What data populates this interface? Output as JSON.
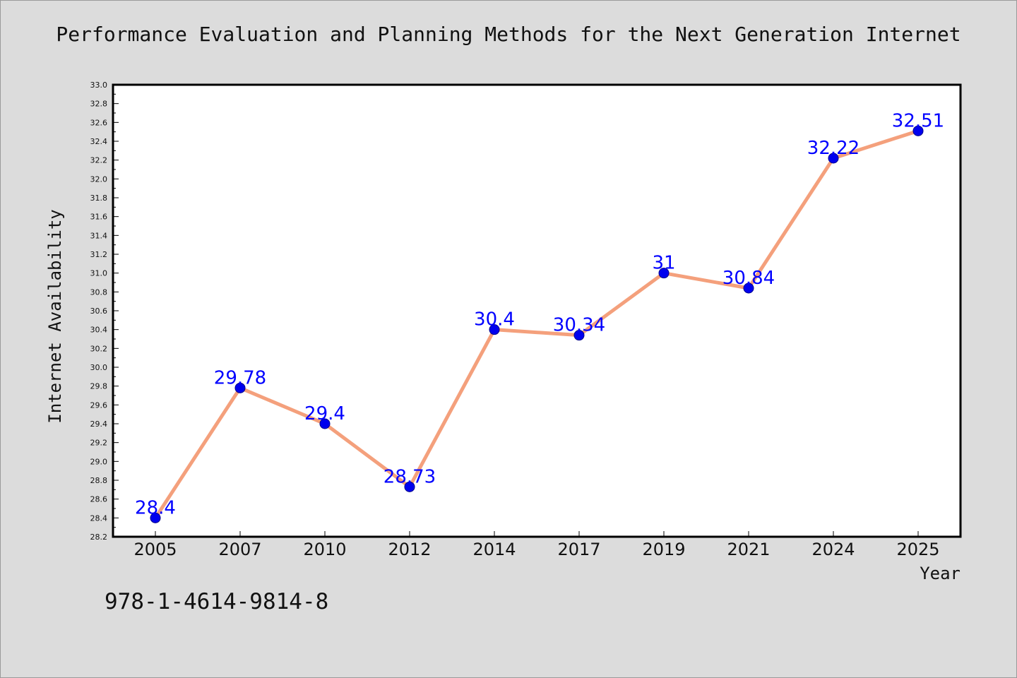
{
  "chart_data": {
    "type": "line",
    "title": "Performance Evaluation and Planning Methods for the Next Generation Internet",
    "xlabel": "Year",
    "ylabel": "Internet Availability",
    "categories": [
      "2005",
      "2007",
      "2010",
      "2012",
      "2014",
      "2017",
      "2019",
      "2021",
      "2024",
      "2025"
    ],
    "values": [
      28.4,
      29.78,
      29.4,
      28.73,
      30.4,
      30.34,
      31.0,
      30.84,
      32.22,
      32.51
    ],
    "data_labels": [
      "28.4",
      "29.78",
      "29.4",
      "28.73",
      "30.4",
      "30.34",
      "31",
      "30.84",
      "32.22",
      "32.51"
    ],
    "ylim": [
      28.2,
      33.0
    ],
    "yticks": [
      "28.2",
      "28.4",
      "28.6",
      "28.8",
      "29.0",
      "29.2",
      "29.4",
      "29.6",
      "29.8",
      "30.0",
      "30.2",
      "30.4",
      "30.6",
      "30.8",
      "31.0",
      "31.2",
      "31.4",
      "31.6",
      "31.8",
      "32.0",
      "32.2",
      "32.4",
      "32.6",
      "32.8",
      "33.0"
    ],
    "grid": false,
    "colors": {
      "line": "#f4a07c",
      "marker": "#0000ee",
      "label": "#0000ff",
      "background": "#dcdcdc",
      "plot_background": "#ffffff"
    }
  },
  "footer": {
    "isbn": "978-1-4614-9814-8"
  }
}
